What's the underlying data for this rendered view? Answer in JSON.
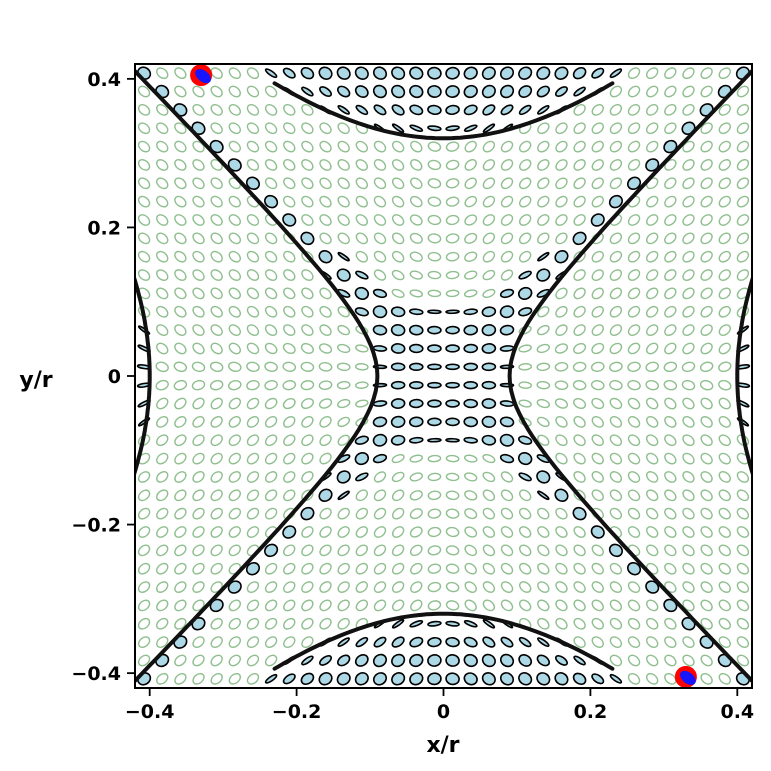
{
  "chart_data": {
    "type": "scatter",
    "title": "",
    "xlabel": "x/r",
    "ylabel": "y/r",
    "xlim": [
      -0.42,
      0.42
    ],
    "ylim": [
      -0.42,
      0.42
    ],
    "xticks": [
      {
        "value": -0.4,
        "label": "−0.4"
      },
      {
        "value": -0.2,
        "label": "−0.2"
      },
      {
        "value": 0,
        "label": "0"
      },
      {
        "value": 0.2,
        "label": "0.2"
      },
      {
        "value": 0.4,
        "label": "0.4"
      }
    ],
    "yticks": [
      {
        "value": 0.4,
        "label": "0.4"
      },
      {
        "value": 0.2,
        "label": "0.2"
      },
      {
        "value": 0,
        "label": "0"
      },
      {
        "value": -0.2,
        "label": "−0.2"
      },
      {
        "value": -0.4,
        "label": "−0.4"
      }
    ],
    "grid": false,
    "legend": "none",
    "glyph_grid": {
      "nx": 34,
      "ny": 34
    },
    "colors": {
      "filled_ellipse_fill": "#add8e6",
      "filled_ellipse_stroke": "#000000",
      "open_ellipse_stroke": "#8fbf8f",
      "contour": "#111111",
      "marker_red": "#ff0000",
      "marker_blue": "#1515ff"
    },
    "contours": [
      {
        "name": "left-inner-branch",
        "param": "x = -sqrt(c^2 + y^2)",
        "c": 0.09,
        "y_range": [
          -0.41,
          0.41
        ]
      },
      {
        "name": "right-inner-branch",
        "param": "x = sqrt(c^2 + y^2)",
        "c": 0.09,
        "y_range": [
          -0.41,
          0.41
        ]
      },
      {
        "name": "top-branch",
        "param": "y = sqrt(c^2 + x^2)",
        "c": 0.32,
        "x_range": [
          -0.23,
          0.23
        ]
      },
      {
        "name": "bottom-branch",
        "param": "y = -sqrt(c^2 + x^2)",
        "c": 0.32,
        "x_range": [
          -0.23,
          0.23
        ]
      },
      {
        "name": "left-outer-branch",
        "param": "x = -sqrt(c^2 + y^2)",
        "c": 0.4,
        "y_range": [
          -0.21,
          0.21
        ]
      },
      {
        "name": "right-outer-branch",
        "param": "x = sqrt(c^2 + y^2)",
        "c": 0.4,
        "y_range": [
          -0.21,
          0.21
        ]
      }
    ],
    "markers": [
      {
        "x": -0.33,
        "y": 0.405
      },
      {
        "x": 0.33,
        "y": -0.405
      }
    ]
  }
}
